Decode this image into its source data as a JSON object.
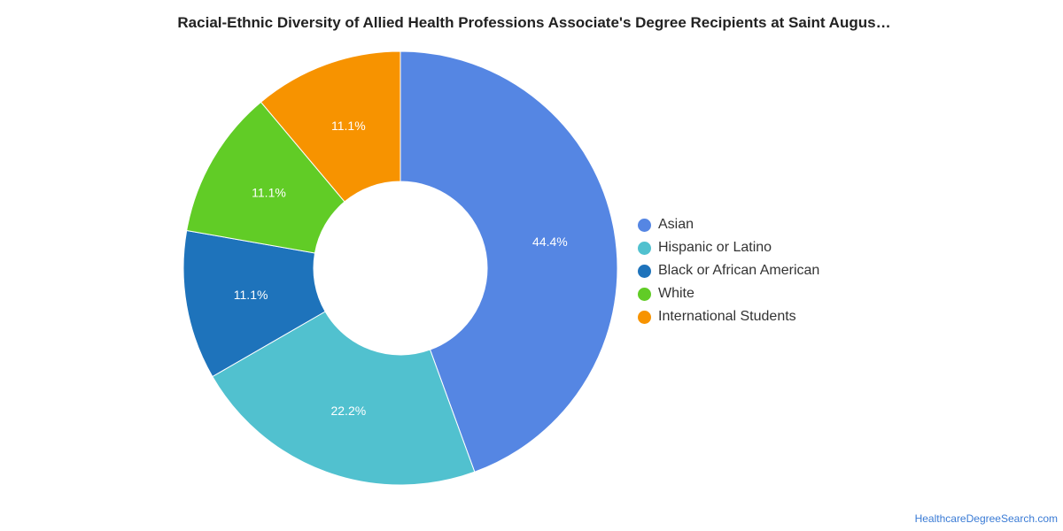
{
  "title": "Racial-Ethnic Diversity of Allied Health Professions Associate's Degree Recipients at Saint Augus…",
  "source": "HealthcareDegreeSearch.com",
  "chart_data": {
    "type": "pie",
    "variant": "donut",
    "title": "Racial-Ethnic Diversity of Allied Health Professions Associate's Degree Recipients at Saint Augus…",
    "legend_position": "right",
    "slices": [
      {
        "name": "Asian",
        "value": 44.4,
        "label": "44.4%",
        "color": "#5586e3"
      },
      {
        "name": "Hispanic or Latino",
        "value": 22.2,
        "label": "22.2%",
        "color": "#51c1cf"
      },
      {
        "name": "Black or African American",
        "value": 11.1,
        "label": "11.1%",
        "color": "#1e73bb"
      },
      {
        "name": "White",
        "value": 11.1,
        "label": "11.1%",
        "color": "#61cc26"
      },
      {
        "name": "International Students",
        "value": 11.1,
        "label": "11.1%",
        "color": "#f79300"
      }
    ]
  }
}
